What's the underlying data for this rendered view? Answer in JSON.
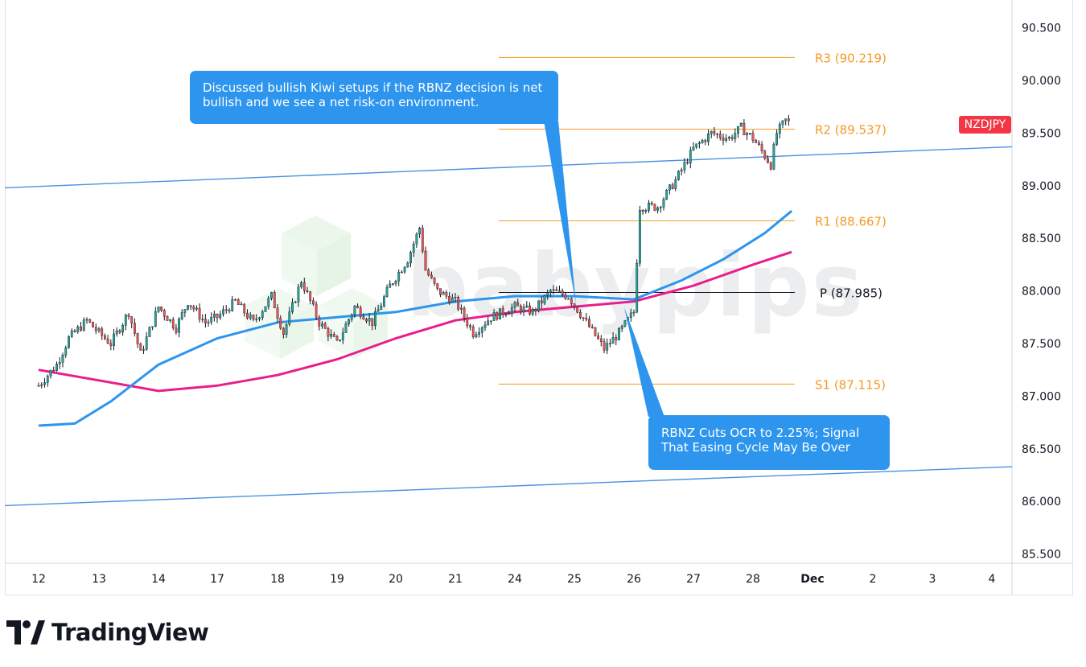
{
  "symbol": "NZDJPY",
  "branding": {
    "logo_text": "TradingView",
    "watermark_text": "babypips"
  },
  "colors": {
    "pivot_levels": "#f59a23",
    "pivot_p": "#131722",
    "channel": "#4a90e2",
    "ma_fast": "#2d95ee",
    "ma_slow": "#e91e8c",
    "candle_up": "#26a69a",
    "candle_down": "#ef5350",
    "callout_bg": "#2d95ee",
    "symbol_badge": "#f23645"
  },
  "annotations": {
    "top": "Discussed bullish Kiwi setups if the RBNZ decision is net bullish and we see a net risk-on environment.",
    "bottom": "RBNZ Cuts OCR to 2.25%; Signal That Easing Cycle May Be Over"
  },
  "chart_data": {
    "type": "line",
    "subtype": "candlestick",
    "series": [
      {
        "name": "NZDJPY"
      }
    ],
    "x_axis_ticks": [
      "12",
      "13",
      "14",
      "17",
      "18",
      "19",
      "20",
      "21",
      "24",
      "25",
      "26",
      "27",
      "28",
      "Dec",
      "2",
      "3",
      "4"
    ],
    "y_axis_ticks": [
      "85.500",
      "86.000",
      "86.500",
      "87.000",
      "87.500",
      "88.000",
      "88.500",
      "89.000",
      "89.500",
      "90.000",
      "90.500"
    ],
    "ylim": [
      85.5,
      90.5
    ],
    "grid": false,
    "pivot_levels": [
      {
        "label": "R3 (90.219)",
        "value": 90.219
      },
      {
        "label": "R2 (89.537)",
        "value": 89.537
      },
      {
        "label": "R1 (88.667)",
        "value": 88.667
      },
      {
        "label": "P (87.985)",
        "value": 87.985
      },
      {
        "label": "S1 (87.115)",
        "value": 87.115
      }
    ],
    "price_path": [
      [
        0,
        87.1
      ],
      [
        0.3,
        87.3
      ],
      [
        0.5,
        87.55
      ],
      [
        0.8,
        87.72
      ],
      [
        1.0,
        87.6
      ],
      [
        1.2,
        87.5
      ],
      [
        1.5,
        87.8
      ],
      [
        1.7,
        87.4
      ],
      [
        2.0,
        87.85
      ],
      [
        2.3,
        87.65
      ],
      [
        2.5,
        87.9
      ],
      [
        2.8,
        87.7
      ],
      [
        3.0,
        87.75
      ],
      [
        3.3,
        87.9
      ],
      [
        3.6,
        87.7
      ],
      [
        3.9,
        87.95
      ],
      [
        4.1,
        87.6
      ],
      [
        4.4,
        88.1
      ],
      [
        4.7,
        87.7
      ],
      [
        5.0,
        87.5
      ],
      [
        5.3,
        87.85
      ],
      [
        5.6,
        87.7
      ],
      [
        5.9,
        88.05
      ],
      [
        6.2,
        88.3
      ],
      [
        6.4,
        88.6
      ],
      [
        6.5,
        88.2
      ],
      [
        6.7,
        88.0
      ],
      [
        7.0,
        87.9
      ],
      [
        7.3,
        87.6
      ],
      [
        7.6,
        87.75
      ],
      [
        8.0,
        87.85
      ],
      [
        8.3,
        87.8
      ],
      [
        8.6,
        88.0
      ],
      [
        8.9,
        87.95
      ],
      [
        9.2,
        87.7
      ],
      [
        9.5,
        87.45
      ],
      [
        9.75,
        87.6
      ],
      [
        10.0,
        87.8
      ],
      [
        10.1,
        88.8
      ],
      [
        10.4,
        88.8
      ],
      [
        10.7,
        89.05
      ],
      [
        11.0,
        89.35
      ],
      [
        11.3,
        89.5
      ],
      [
        11.6,
        89.45
      ],
      [
        11.8,
        89.55
      ],
      [
        12.0,
        89.45
      ],
      [
        12.3,
        89.2
      ],
      [
        12.4,
        89.5
      ],
      [
        12.55,
        89.62
      ],
      [
        12.65,
        89.58
      ]
    ],
    "ma_fast": [
      [
        0,
        86.72
      ],
      [
        0.6,
        86.74
      ],
      [
        1.2,
        86.95
      ],
      [
        2.0,
        87.3
      ],
      [
        3.0,
        87.55
      ],
      [
        4.0,
        87.7
      ],
      [
        5.0,
        87.75
      ],
      [
        6.0,
        87.8
      ],
      [
        7.0,
        87.9
      ],
      [
        8.0,
        87.95
      ],
      [
        9.0,
        87.95
      ],
      [
        10.0,
        87.92
      ],
      [
        10.8,
        88.1
      ],
      [
        11.5,
        88.3
      ],
      [
        12.2,
        88.55
      ],
      [
        12.65,
        88.76
      ]
    ],
    "ma_slow": [
      [
        0,
        87.25
      ],
      [
        1.0,
        87.15
      ],
      [
        2.0,
        87.05
      ],
      [
        3.0,
        87.1
      ],
      [
        4.0,
        87.2
      ],
      [
        5.0,
        87.35
      ],
      [
        6.0,
        87.55
      ],
      [
        7.0,
        87.72
      ],
      [
        8.0,
        87.8
      ],
      [
        9.0,
        87.85
      ],
      [
        10.0,
        87.9
      ],
      [
        11.0,
        88.05
      ],
      [
        12.0,
        88.25
      ],
      [
        12.65,
        88.37
      ]
    ],
    "channel_upper": [
      [
        -0.6,
        88.98
      ],
      [
        16.7,
        89.37
      ]
    ],
    "channel_lower": [
      [
        -0.6,
        85.96
      ],
      [
        16.7,
        86.33
      ]
    ]
  }
}
